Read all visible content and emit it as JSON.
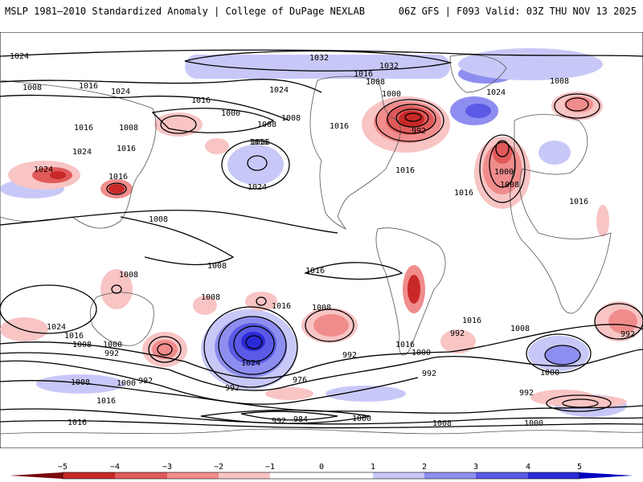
{
  "header": {
    "left_title": "MSLP 1981–2010 Standardized Anomaly | College of DuPage NEXLAB",
    "right_title": "06Z GFS | F093 Valid: 03Z THU NOV 13 2025"
  },
  "colors": {
    "neg5": "#7a0a0a",
    "neg4": "#c82828",
    "neg3": "#e05a5a",
    "neg2": "#f08c8c",
    "neg1": "#f8c4c4",
    "zero": "#ffffff",
    "pos1": "#c8c8f8",
    "pos2": "#8e8ef0",
    "pos3": "#5a5ae6",
    "pos4": "#2a2ad8",
    "pos5": "#0000c0",
    "contour": "#000000",
    "coast": "#555555"
  },
  "isobar_labels": [
    {
      "text": "1024"
    },
    {
      "text": "1032"
    },
    {
      "text": "1032"
    },
    {
      "text": "1016"
    },
    {
      "text": "1008"
    },
    {
      "text": "1024"
    },
    {
      "text": "1008"
    },
    {
      "text": "1016"
    },
    {
      "text": "1024"
    },
    {
      "text": "1016"
    },
    {
      "text": "1000"
    },
    {
      "text": "1008"
    },
    {
      "text": "1024"
    },
    {
      "text": "1016"
    },
    {
      "text": "1008"
    },
    {
      "text": "1016"
    },
    {
      "text": "1024"
    },
    {
      "text": "1016"
    },
    {
      "text": "1008"
    },
    {
      "text": "1016"
    },
    {
      "text": "992"
    },
    {
      "text": "1016"
    },
    {
      "text": "1016"
    },
    {
      "text": "1000"
    },
    {
      "text": "1008"
    },
    {
      "text": "1024"
    },
    {
      "text": "1008"
    },
    {
      "text": "1000"
    },
    {
      "text": "1016"
    },
    {
      "text": "1008"
    },
    {
      "text": "1008"
    },
    {
      "text": "1016"
    },
    {
      "text": "1008"
    },
    {
      "text": "1016"
    },
    {
      "text": "1024"
    },
    {
      "text": "1016"
    },
    {
      "text": "1008"
    },
    {
      "text": "1000"
    },
    {
      "text": "992"
    },
    {
      "text": "1008"
    },
    {
      "text": "1016"
    },
    {
      "text": "1024"
    },
    {
      "text": "992"
    },
    {
      "text": "1008"
    },
    {
      "text": "992"
    },
    {
      "text": "1024"
    },
    {
      "text": "1016"
    },
    {
      "text": "1000"
    },
    {
      "text": "992"
    },
    {
      "text": "1016"
    },
    {
      "text": "992"
    },
    {
      "text": "1016"
    },
    {
      "text": "1008"
    },
    {
      "text": "1000"
    },
    {
      "text": "992"
    },
    {
      "text": "1016"
    },
    {
      "text": "1008"
    },
    {
      "text": "1000"
    },
    {
      "text": "992"
    },
    {
      "text": "976"
    },
    {
      "text": "1016"
    },
    {
      "text": "992"
    },
    {
      "text": "984"
    },
    {
      "text": "1000"
    },
    {
      "text": "1008"
    },
    {
      "text": "1000"
    },
    {
      "text": "992"
    }
  ],
  "colorbar": {
    "tick_labels": [
      "−5",
      "−4",
      "−3",
      "−2",
      "−1",
      "0",
      "1",
      "2",
      "3",
      "4",
      "5"
    ]
  }
}
